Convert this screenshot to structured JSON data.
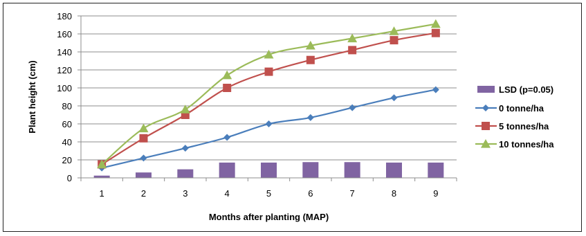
{
  "chart_data": {
    "type": "line",
    "title": "",
    "xlabel": "Months after planting (MAP)",
    "ylabel": "Plant height (cm)",
    "ylim": [
      0,
      180
    ],
    "yticks": [
      0,
      20,
      40,
      60,
      80,
      100,
      120,
      140,
      160,
      180
    ],
    "grid": "horizontal",
    "legend_position": "right",
    "x": [
      "1",
      "2",
      "3",
      "4",
      "5",
      "6",
      "7",
      "8",
      "9"
    ],
    "bar_series": {
      "name": "LSD (p=0.05)",
      "color": "#8064A2",
      "values": [
        2.5,
        6,
        9.5,
        17,
        17,
        17.5,
        17.5,
        17,
        17
      ]
    },
    "series": [
      {
        "name": "0 tonne/ha",
        "color": "#4A7EBB",
        "marker": "diamond",
        "values": [
          11,
          22,
          33,
          45,
          60,
          67,
          78,
          89,
          98
        ]
      },
      {
        "name": "5 tonnes/ha",
        "color": "#C0504D",
        "marker": "square",
        "values": [
          15,
          44,
          70,
          100,
          118,
          131,
          142,
          153,
          161
        ]
      },
      {
        "name": "10 tonnes/ha",
        "color": "#9BBB59",
        "marker": "triangle",
        "values": [
          15,
          55,
          76,
          114,
          137,
          147,
          155,
          163,
          171
        ]
      }
    ]
  }
}
